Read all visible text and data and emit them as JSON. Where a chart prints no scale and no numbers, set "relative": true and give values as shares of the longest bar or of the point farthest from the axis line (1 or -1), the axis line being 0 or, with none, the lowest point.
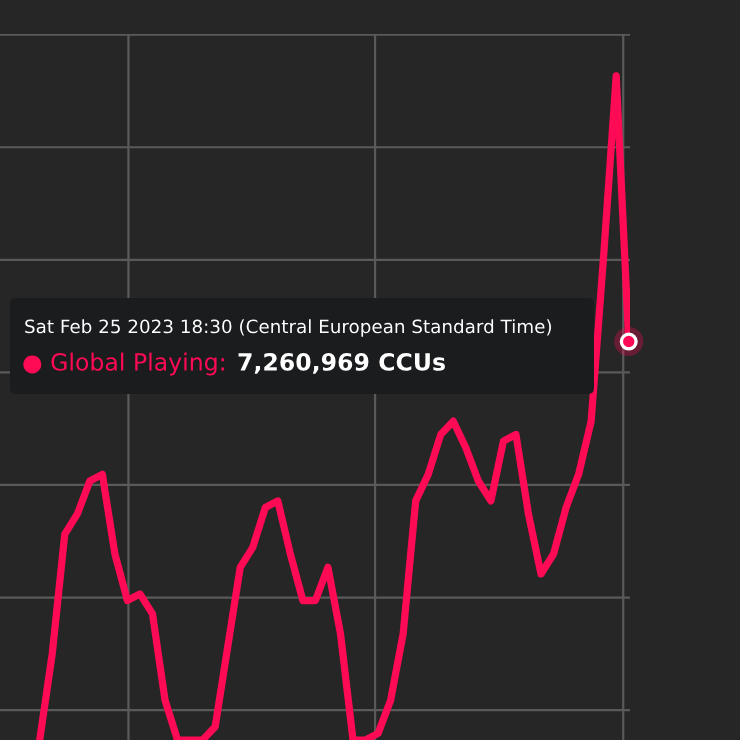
{
  "chart_data": {
    "type": "line",
    "relative": true,
    "grid": true,
    "categories": [
      null,
      null,
      null,
      null,
      null,
      null,
      null,
      null,
      null,
      null,
      null,
      null,
      null,
      null,
      null,
      null,
      null,
      null,
      null,
      null,
      null,
      null,
      null,
      null,
      null,
      null,
      null,
      null,
      null,
      null,
      null,
      null,
      null,
      null,
      null,
      null,
      null,
      null,
      null,
      null,
      null,
      null,
      null,
      null,
      null,
      null,
      null,
      null
    ],
    "series": [
      {
        "color": "#ff0a55",
        "values": [
          0.0,
          0.13,
          0.31,
          0.34,
          0.39,
          0.4,
          0.28,
          0.21,
          0.22,
          0.19,
          0.06,
          0.0,
          0.0,
          0.0,
          0.02,
          0.14,
          0.26,
          0.29,
          0.35,
          0.36,
          0.28,
          0.21,
          0.21,
          0.26,
          0.16,
          0.0,
          0.0,
          0.01,
          0.06,
          0.16,
          0.36,
          0.4,
          0.46,
          0.48,
          0.44,
          0.39,
          0.36,
          0.45,
          0.46,
          0.34,
          0.25,
          0.28,
          0.35,
          0.4,
          0.48,
          0.73,
          1.0,
          0.6
        ]
      }
    ],
    "annotations": [
      "Sat Feb 25 2023 18:30 (Central European Standard Time)",
      "● Global Playing:",
      "7,260,969 CCUs"
    ]
  }
}
